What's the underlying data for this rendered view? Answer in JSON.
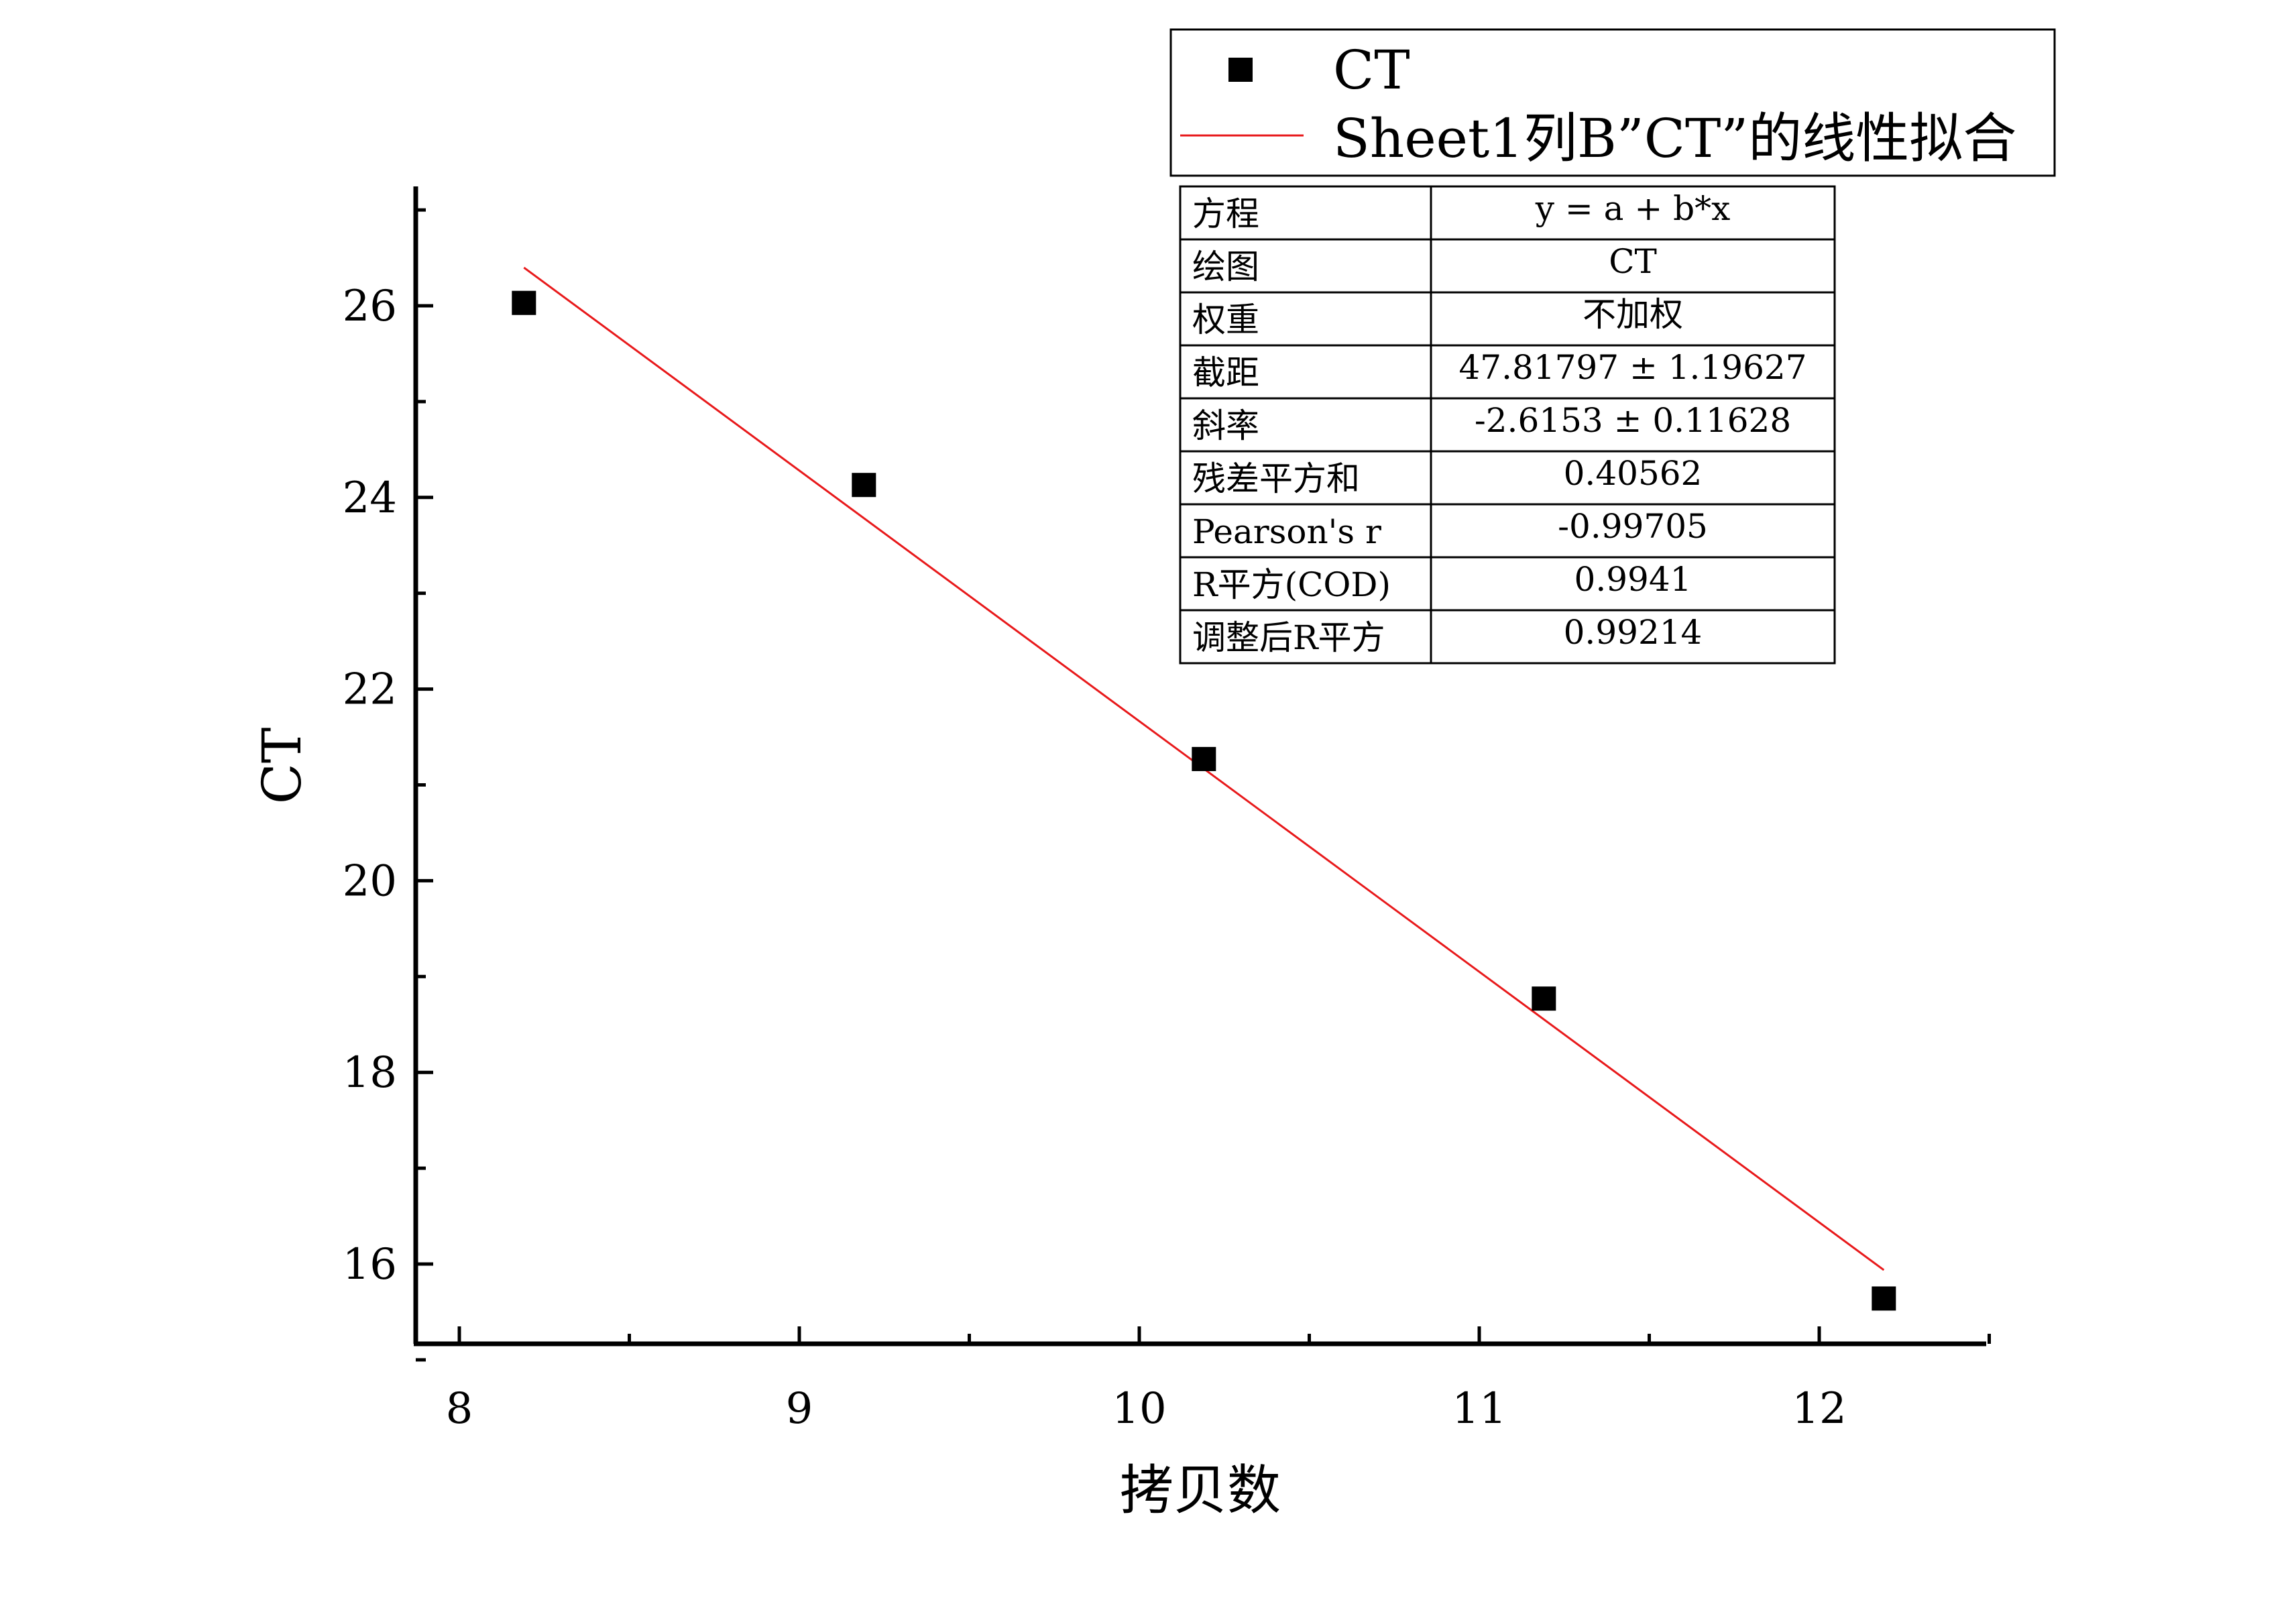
{
  "colors": {
    "marker": "#000000",
    "fit_line": "#e8191b",
    "axis": "#000000",
    "background": "#ffffff"
  },
  "chart_data": {
    "type": "scatter",
    "title": "",
    "xlabel": "拷贝数",
    "ylabel": "CT",
    "xlim": [
      7.87,
      12.52
    ],
    "ylim": [
      15.2,
      27.2
    ],
    "x_ticks": [
      8,
      9,
      10,
      11,
      12
    ],
    "x_tick_labels": [
      "8",
      "9",
      "10",
      "11",
      "12"
    ],
    "y_ticks": [
      16,
      18,
      20,
      22,
      24,
      26
    ],
    "y_tick_labels": [
      "16",
      "18",
      "20",
      "22",
      "24",
      "26"
    ],
    "grid": false,
    "legend_position": "top-right",
    "series": [
      {
        "name": "CT",
        "kind": "scatter",
        "marker": "square",
        "x": [
          8.19,
          9.19,
          10.19,
          11.19,
          12.19
        ],
        "y": [
          26.03,
          24.13,
          21.27,
          18.77,
          15.64
        ]
      },
      {
        "name": "Sheet1列B”CT”的线性拟合",
        "kind": "line",
        "fit": {
          "intercept": 47.81797,
          "slope": -2.6153
        },
        "x": [
          8.19,
          12.19
        ]
      }
    ],
    "fit_table": {
      "rows": [
        {
          "label": "方程",
          "value": "y = a + b*x"
        },
        {
          "label": "绘图",
          "value": "CT"
        },
        {
          "label": "权重",
          "value": "不加权"
        },
        {
          "label": "截距",
          "value": "47.81797 ± 1.19627"
        },
        {
          "label": "斜率",
          "value": "-2.6153 ± 0.11628"
        },
        {
          "label": "残差平方和",
          "value": "0.40562"
        },
        {
          "label": "Pearson's r",
          "value": "-0.99705"
        },
        {
          "label": "R平方(COD)",
          "value": "0.9941"
        },
        {
          "label": "调整后R平方",
          "value": "0.99214"
        }
      ]
    }
  }
}
